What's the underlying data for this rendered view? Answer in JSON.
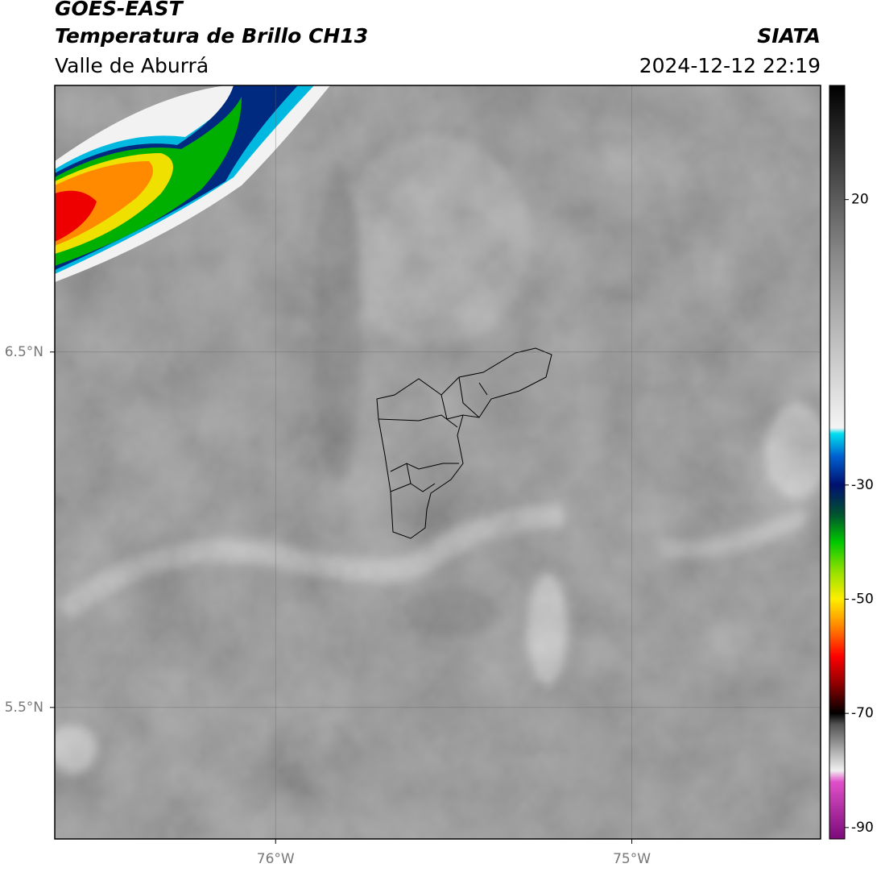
{
  "header": {
    "title": "GOES-EAST",
    "subtitle": "Temperatura de Brillo CH13",
    "region": "Valle de Aburrá",
    "source": "SIATA",
    "datetime": "2024-12-12 22:19"
  },
  "map": {
    "xlim": [
      -76.62,
      -74.47
    ],
    "ylim": [
      5.13,
      7.25
    ],
    "xticks": [
      {
        "value": -76,
        "label": "76°W"
      },
      {
        "value": -75,
        "label": "75°W"
      }
    ],
    "yticks": [
      {
        "value": 6.5,
        "label": "6.5°N"
      },
      {
        "value": 5.5,
        "label": "5.5°N"
      }
    ],
    "grid": true
  },
  "colorbar": {
    "lim": [
      -92,
      40
    ],
    "ticks": [
      20,
      -30,
      -50,
      -70,
      -90
    ],
    "stops": [
      {
        "value": -92,
        "color": "#7a0a7a"
      },
      {
        "value": -82,
        "color": "#e050c8"
      },
      {
        "value": -80,
        "color": "#f0f0f0"
      },
      {
        "value": -72,
        "color": "#555555"
      },
      {
        "value": -70,
        "color": "#000000"
      },
      {
        "value": -65,
        "color": "#8b0000"
      },
      {
        "value": -60,
        "color": "#ff0000"
      },
      {
        "value": -55,
        "color": "#ff8000"
      },
      {
        "value": -50,
        "color": "#ffee00"
      },
      {
        "value": -45,
        "color": "#90e000"
      },
      {
        "value": -40,
        "color": "#00c800"
      },
      {
        "value": -35,
        "color": "#005030"
      },
      {
        "value": -30,
        "color": "#001070"
      },
      {
        "value": -25,
        "color": "#0060d0"
      },
      {
        "value": -21,
        "color": "#00e0f0"
      },
      {
        "value": -20,
        "color": "#f4f4f4"
      },
      {
        "value": 10,
        "color": "#8a8a8a"
      },
      {
        "value": 40,
        "color": "#000000"
      }
    ]
  }
}
